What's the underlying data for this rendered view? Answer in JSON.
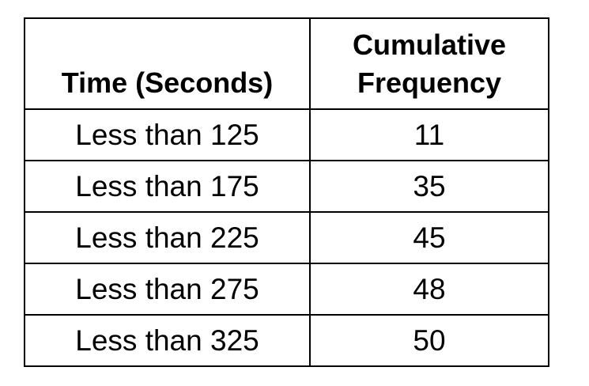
{
  "chart_data": {
    "type": "table",
    "columns": [
      "Time (Seconds)",
      "Cumulative Frequency"
    ],
    "header": {
      "col1": "Time (Seconds)",
      "col2_line1": "Cumulative",
      "col2_line2": "Frequency"
    },
    "rows": [
      {
        "time": "Less than 125",
        "cumulative_frequency": "11"
      },
      {
        "time": "Less than 175",
        "cumulative_frequency": "35"
      },
      {
        "time": "Less than 225",
        "cumulative_frequency": "45"
      },
      {
        "time": "Less than 275",
        "cumulative_frequency": "48"
      },
      {
        "time": "Less than 325",
        "cumulative_frequency": "50"
      }
    ],
    "x": [
      125,
      175,
      225,
      275,
      325
    ],
    "values": [
      11,
      35,
      45,
      48,
      50
    ]
  }
}
